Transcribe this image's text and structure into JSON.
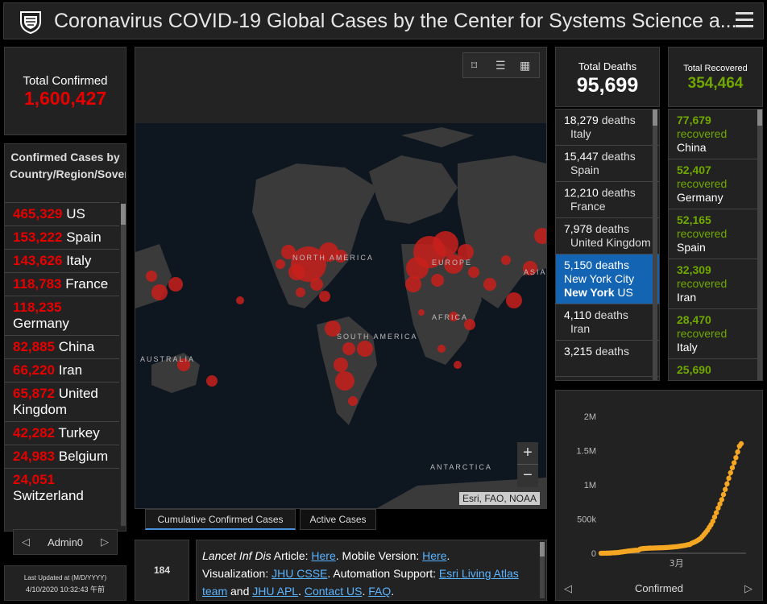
{
  "header": {
    "title": "Coronavirus COVID-19 Global Cases by the Center for Systems Science a..."
  },
  "total_confirmed": {
    "label": "Total Confirmed",
    "value": "1,600,427"
  },
  "confirmed_by_country": {
    "title": "Confirmed Cases by Country/Region/Sovereignty",
    "items": [
      {
        "num": "465,329",
        "name": "US"
      },
      {
        "num": "153,222",
        "name": "Spain"
      },
      {
        "num": "143,626",
        "name": "Italy"
      },
      {
        "num": "118,783",
        "name": "France"
      },
      {
        "num": "118,235",
        "name": "Germany"
      },
      {
        "num": "82,885",
        "name": "China"
      },
      {
        "num": "66,220",
        "name": "Iran"
      },
      {
        "num": "65,872",
        "name": "United Kingdom"
      },
      {
        "num": "42,282",
        "name": "Turkey"
      },
      {
        "num": "24,983",
        "name": "Belgium"
      },
      {
        "num": "24,051",
        "name": "Switzerland"
      }
    ],
    "pager_label": "Admin0"
  },
  "last_updated": {
    "label": "Last Updated at (M/D/YYYY)",
    "value": "4/10/2020 10:32:43 午前"
  },
  "map": {
    "attribution": "Esri, FAO, NOAA",
    "labels": {
      "north_america": "NORTH AMERICA",
      "south_america": "SOUTH AMERICA",
      "europe": "EUROPE",
      "africa": "AFRICA",
      "asia": "ASIA",
      "australia": "AUSTRALIA",
      "antarctica": "ANTARCTICA"
    },
    "zoom_in": "+",
    "zoom_out": "−"
  },
  "tabs": [
    {
      "label": "Cumulative Confirmed Cases",
      "active": true
    },
    {
      "label": "Active Cases",
      "active": false
    }
  ],
  "country_count": "184",
  "info": {
    "p1": "Lancet Inf Dis",
    "p2": " Article: ",
    "link1": "Here",
    "p3": ". Mobile Version: ",
    "link2": "Here",
    "p4": ".",
    "p5": "Visualization: ",
    "link3": "JHU CSSE",
    "p6": ". Automation Support: ",
    "link4": "Esri Living Atlas team",
    "p7": " and ",
    "link5": "JHU APL",
    "p8": ". ",
    "link6": "Contact US",
    "p9": ". ",
    "link7": "FAQ",
    "p10": "."
  },
  "total_deaths": {
    "label": "Total Deaths",
    "value": "95,699",
    "items": [
      {
        "num": "18,279",
        "unit": "deaths",
        "place": "Italy"
      },
      {
        "num": "15,447",
        "unit": "deaths",
        "place": "Spain"
      },
      {
        "num": "12,210",
        "unit": "deaths",
        "place": "France"
      },
      {
        "num": "7,978",
        "unit": "deaths",
        "place": "United Kingdom"
      },
      {
        "num": "5,150",
        "unit": "deaths",
        "place_prefix": "New York City",
        "place_bold": "New York",
        "place_suffix": "US",
        "selected": true
      },
      {
        "num": "4,110",
        "unit": "deaths",
        "place": "Iran"
      },
      {
        "num": "3,215",
        "unit": "deaths",
        "place": ""
      }
    ]
  },
  "total_recovered": {
    "label": "Total Recovered",
    "value": "354,464",
    "items": [
      {
        "num": "77,679",
        "unit": "recovered",
        "place": "China"
      },
      {
        "num": "52,407",
        "unit": "recovered",
        "place": "Germany"
      },
      {
        "num": "52,165",
        "unit": "recovered",
        "place": "Spain"
      },
      {
        "num": "32,309",
        "unit": "recovered",
        "place": "Iran"
      },
      {
        "num": "28,470",
        "unit": "recovered",
        "place": "Italy"
      },
      {
        "num": "25,690",
        "unit": "",
        "place": ""
      }
    ]
  },
  "chart_data": {
    "type": "line",
    "yticks": [
      "2M",
      "1.5M",
      "1M",
      "500k",
      "0"
    ],
    "ylim": [
      0,
      2000000
    ],
    "xtick_label": "3月",
    "series": [
      {
        "name": "",
        "values": [
          555,
          654,
          941,
          1434,
          2118,
          2927,
          5578,
          6166,
          8234,
          9927,
          12038,
          16787,
          19881,
          23892,
          27635,
          30817,
          34391,
          37120,
          40150,
          42762,
          44802,
          45221,
          60368,
          66885,
          69030,
          71224,
          73258,
          75136,
          75639,
          76197,
          76819,
          78572,
          78958,
          79561,
          80406,
          81388,
          82746,
          84112,
          86011,
          88369,
          90306,
          92840,
          95120,
          97886,
          101801,
          105847,
          109821,
          113590,
          118620,
          125875,
          128352,
          145205,
          156101,
          167454,
          181574,
          197102,
          214821,
          242570,
          272208,
          304507,
          336953,
          378235,
          418045,
          467653,
          529591,
          593291,
          660706,
          720117,
          782365,
          857487,
          932605,
          1013157,
          1095917,
          1176060,
          1249754,
          1321481,
          1396476,
          1480202,
          1565278,
          1600427
        ]
      }
    ],
    "label": "Confirmed",
    "color": "#f5a623"
  }
}
